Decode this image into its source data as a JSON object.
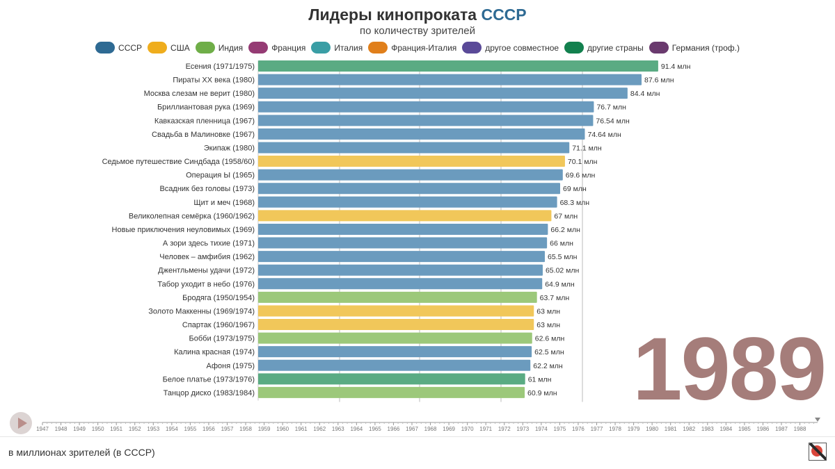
{
  "header": {
    "title_main": "Лидеры кинопроката",
    "title_highlight": "СССР",
    "subtitle": "по количеству зрителей"
  },
  "legend": [
    {
      "label": "СССР",
      "color": "#2e6a93"
    },
    {
      "label": "США",
      "color": "#efad1d"
    },
    {
      "label": "Индия",
      "color": "#6fae48"
    },
    {
      "label": "Франция",
      "color": "#953b74"
    },
    {
      "label": "Италия",
      "color": "#3a9ea5"
    },
    {
      "label": "Франция-Италия",
      "color": "#e07f1b"
    },
    {
      "label": "другое совместное",
      "color": "#5a4a98"
    },
    {
      "label": "другие страны",
      "color": "#12804e"
    },
    {
      "label": "Германия (троф.)",
      "color": "#6a3a6e"
    }
  ],
  "chart_data": {
    "type": "bar",
    "orientation": "horizontal",
    "value_suffix": " млн",
    "categories": [
      "Есения (1971/1975)",
      "Пираты XX века (1980)",
      "Москва слезам не верит (1980)",
      "Бриллиантовая рука (1969)",
      "Кавказская пленница (1967)",
      "Свадьба в Малиновке (1967)",
      "Экипаж (1980)",
      "Седьмое путешествие Синдбада (1958/60)",
      "Операция Ы (1965)",
      "Всадник без головы (1973)",
      "Щит и меч (1968)",
      "Великолепная семёрка (1960/1962)",
      "Новые приключения неуловимых (1969)",
      "А зори здесь тихие (1971)",
      "Человек – амфибия (1962)",
      "Джентльмены удачи (1972)",
      "Табор уходит в небо (1976)",
      "Бродяга (1950/1954)",
      "Золото Маккенны (1969/1974)",
      "Спартак (1960/1967)",
      "Бобби (1973/1975)",
      "Калина красная (1974)",
      "Афоня (1975)",
      "Белое платье (1973/1976)",
      "Танцор диско (1983/1984)"
    ],
    "values": [
      91.4,
      87.6,
      84.4,
      76.7,
      76.54,
      74.64,
      71.1,
      70.1,
      69.6,
      69,
      68.3,
      67,
      66.2,
      66,
      65.5,
      65.02,
      64.9,
      63.7,
      63,
      63,
      62.6,
      62.5,
      62.2,
      61,
      60.9
    ],
    "value_labels": [
      "91.4",
      "87.6",
      "84.4",
      "76.7",
      "76.54",
      "74.64",
      "71.1",
      "70.1",
      "69.6",
      "69",
      "68.3",
      "67",
      "66.2",
      "66",
      "65.5",
      "65.02",
      "64.9",
      "63.7",
      "63",
      "63",
      "62.6",
      "62.5",
      "62.2",
      "61",
      "60.9"
    ],
    "bar_colors": [
      "#5aab83",
      "#6b9bbe",
      "#6b9bbe",
      "#6b9bbe",
      "#6b9bbe",
      "#6b9bbe",
      "#6b9bbe",
      "#f1c75a",
      "#6b9bbe",
      "#6b9bbe",
      "#6b9bbe",
      "#f1c75a",
      "#6b9bbe",
      "#6b9bbe",
      "#6b9bbe",
      "#6b9bbe",
      "#6b9bbe",
      "#9cc87a",
      "#f1c75a",
      "#f1c75a",
      "#9cc87a",
      "#6b9bbe",
      "#6b9bbe",
      "#5aab83",
      "#9cc87a"
    ],
    "xlim": [
      0,
      100
    ],
    "year": "1989"
  },
  "timeline": {
    "years": [
      "1947",
      "1948",
      "1949",
      "1950",
      "1951",
      "1952",
      "1953",
      "1954",
      "1955",
      "1956",
      "1957",
      "1958",
      "1959",
      "1960",
      "1961",
      "1962",
      "1963",
      "1964",
      "1965",
      "1966",
      "1967",
      "1968",
      "1969",
      "1970",
      "1971",
      "1972",
      "1973",
      "1974",
      "1975",
      "1976",
      "1977",
      "1978",
      "1979",
      "1980",
      "1981",
      "1982",
      "1983",
      "1984",
      "1985",
      "1986",
      "1987",
      "1988"
    ]
  },
  "footer": {
    "caption": "в миллионах зрителей (в СССР)"
  }
}
